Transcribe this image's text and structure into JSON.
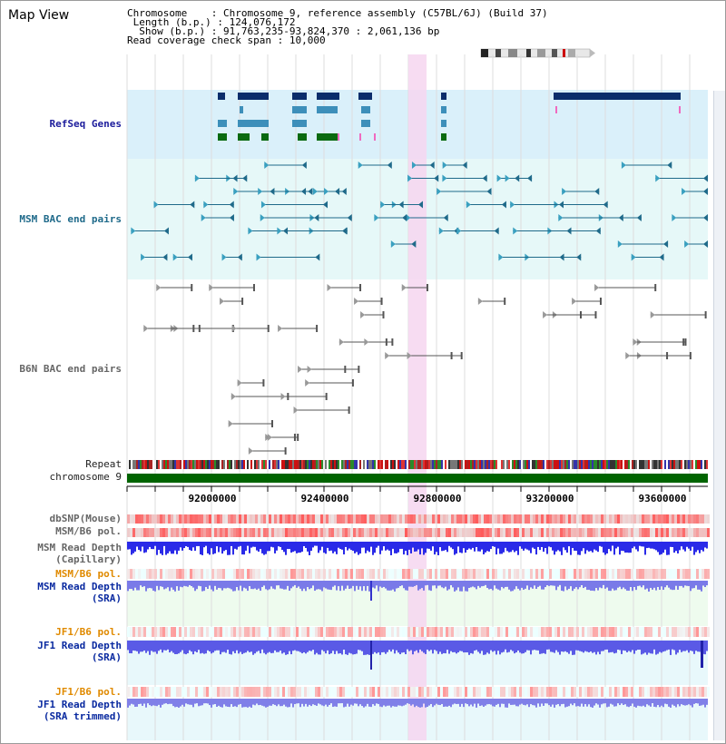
{
  "title": "Map View",
  "info": {
    "chromosome_key": "Chromosome",
    "chromosome_value": "Chromosome 9, reference assembly (C57BL/6J) (Build 37)",
    "length_key": "Length (b.p.)",
    "length_value": "124,076,172",
    "show_key": "Show (b.p.)",
    "show_value": "91,763,235-93,824,370 : 2,061,136 bp",
    "coverage_key": "Read coverage check span",
    "coverage_value": "10,000"
  },
  "tracks": {
    "refseq": "RefSeq Genes",
    "msm_bac": "MSM BAC end pairs",
    "b6n_bac": "B6N BAC end pairs",
    "repeat": "Repeat",
    "chromosome": "chromosome 9",
    "dbsnp": "dbSNP(Mouse)",
    "msm_b6_pol": "MSM/B6 pol.",
    "msm_depth_cap_1": "MSM Read Depth",
    "msm_depth_cap_2": "(Capillary)",
    "msm_b6_pol_sra": "MSM/B6 pol.",
    "msm_depth_sra_1": "MSM Read Depth",
    "msm_depth_sra_2": "(SRA)",
    "jf1_b6_pol": "JF1/B6 pol.",
    "jf1_depth_sra_1": "JF1 Read Depth",
    "jf1_depth_sra_2": "(SRA)",
    "jf1_b6_pol_2": "JF1/B6 pol.",
    "jf1_depth_trim_1": "JF1 Read Depth",
    "jf1_depth_trim_2": "(SRA trimmed)"
  },
  "axis": {
    "ticks": [
      "92000000",
      "92400000",
      "92800000",
      "93200000",
      "93600000"
    ]
  },
  "colors": {
    "refseq_bg": "#daf0fa",
    "msm_bg": "#e6f8f8",
    "highlight": "#f6d6f0",
    "chromosome": "#006400",
    "msm_bar": "#1f6a8a",
    "b6n_bar": "#555555",
    "depth_blue": "#2a2ae8",
    "depth_light": "#7a7ae8"
  }
}
